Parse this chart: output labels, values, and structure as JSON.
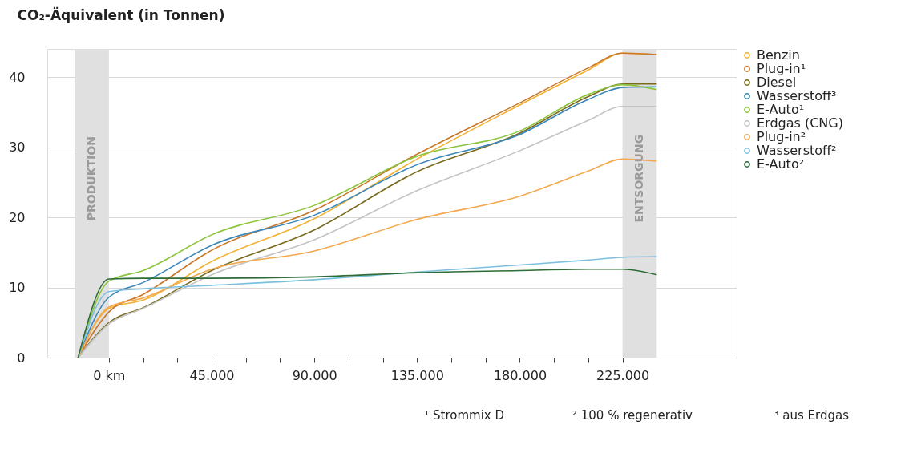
{
  "chart_data": {
    "type": "line",
    "ylabel": "CO₂-Äquivalent (in Tonnen)",
    "x": [
      -13500,
      0,
      15000,
      45000,
      90000,
      135000,
      180000,
      210000,
      225000,
      240000
    ],
    "series": [
      {
        "name": "Benzin",
        "color": "#f2b134",
        "values": [
          0,
          7.0,
          8.2,
          13.7,
          19.8,
          28.3,
          36.0,
          41.0,
          43.4,
          43.2
        ]
      },
      {
        "name": "Plug-in¹",
        "color": "#c8782a",
        "values": [
          0,
          6.5,
          9.0,
          15.3,
          21.0,
          29.0,
          36.3,
          41.3,
          43.4,
          43.2
        ]
      },
      {
        "name": "Diesel",
        "color": "#7a6a1e",
        "values": [
          0,
          5.0,
          7.1,
          12.4,
          18.2,
          26.5,
          32.0,
          37.2,
          39.0,
          39.0
        ]
      },
      {
        "name": "Wasserstoff³",
        "color": "#3a86b8",
        "values": [
          0,
          8.6,
          10.7,
          16.0,
          20.3,
          27.5,
          31.8,
          36.8,
          38.5,
          38.6
        ]
      },
      {
        "name": "E-Auto¹",
        "color": "#8cc43c",
        "values": [
          0,
          10.9,
          12.4,
          17.5,
          21.7,
          28.7,
          32.3,
          37.5,
          38.9,
          38.2
        ]
      },
      {
        "name": "Erdgas (CNG)",
        "color": "#c4c4c4",
        "values": [
          0,
          4.8,
          7.0,
          11.8,
          16.8,
          23.8,
          29.5,
          33.8,
          35.8,
          35.8
        ]
      },
      {
        "name": "Plug-in²",
        "color": "#f2a950",
        "values": [
          0,
          7.2,
          8.5,
          12.6,
          15.2,
          19.7,
          23.0,
          26.6,
          28.3,
          28.0
        ]
      },
      {
        "name": "Wasserstoff²",
        "color": "#7cc0e0",
        "values": [
          0,
          9.4,
          9.8,
          10.3,
          11.1,
          12.2,
          13.2,
          13.9,
          14.3,
          14.4
        ]
      },
      {
        "name": "E-Auto²",
        "color": "#2e6b35",
        "values": [
          0,
          11.2,
          11.3,
          11.3,
          11.5,
          12.1,
          12.4,
          12.6,
          12.6,
          11.8
        ]
      }
    ],
    "xlim": [
      -27000,
      275000
    ],
    "xticks": [
      {
        "value": 0,
        "label": "0 km"
      },
      {
        "value": 15000,
        "label": null
      },
      {
        "value": 30000,
        "label": null
      },
      {
        "value": 45000,
        "label": "45.000"
      },
      {
        "value": 60000,
        "label": null
      },
      {
        "value": 75000,
        "label": null
      },
      {
        "value": 90000,
        "label": "90.000"
      },
      {
        "value": 105000,
        "label": null
      },
      {
        "value": 120000,
        "label": null
      },
      {
        "value": 135000,
        "label": "135.000"
      },
      {
        "value": 150000,
        "label": null
      },
      {
        "value": 165000,
        "label": null
      },
      {
        "value": 180000,
        "label": "180.000"
      },
      {
        "value": 195000,
        "label": null
      },
      {
        "value": 210000,
        "label": null
      },
      {
        "value": 225000,
        "label": "225.000"
      }
    ],
    "ylim": [
      0,
      44
    ],
    "yticks": [
      0,
      10,
      20,
      30,
      40
    ],
    "grid": "y",
    "legend": "right",
    "marker": "none",
    "line_style": "solid",
    "bands": [
      {
        "axis": "x",
        "from": -15000,
        "to": 0,
        "label": "PRODUKTION",
        "color": "#e0e0e0"
      },
      {
        "axis": "x",
        "from": 225000,
        "to": 240000,
        "label": "ENTSORGUNG",
        "color": "#e0e0e0"
      }
    ],
    "annotations": [
      "¹ Strommix D",
      "² 100 % regenerativ",
      "³ aus Erdgas"
    ]
  }
}
